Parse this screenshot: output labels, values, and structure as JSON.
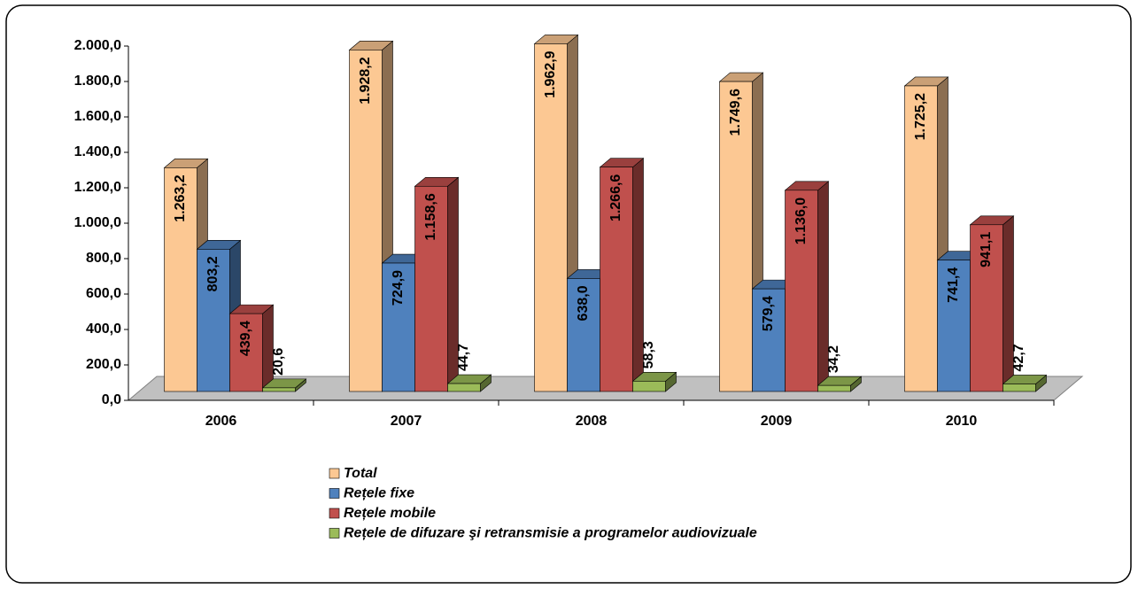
{
  "chart_data": {
    "type": "bar3d",
    "categories": [
      "2006",
      "2007",
      "2008",
      "2009",
      "2010"
    ],
    "series": [
      {
        "name": "Total",
        "color": "#fcc893",
        "values": [
          1263.2,
          1928.2,
          1962.9,
          1749.6,
          1725.2
        ],
        "value_labels": [
          "1.263,2",
          "1.928,2",
          "1.962,9",
          "1.749,6",
          "1.725,2"
        ]
      },
      {
        "name": "Rețele fixe",
        "color": "#4f81bd",
        "values": [
          803.2,
          724.9,
          638.0,
          579.4,
          741.4
        ],
        "value_labels": [
          "803,2",
          "724,9",
          "638,0",
          "579,4",
          "741,4"
        ]
      },
      {
        "name": "Rețele mobile",
        "color": "#c0504d",
        "values": [
          439.4,
          1158.6,
          1266.6,
          1136.0,
          941.1
        ],
        "value_labels": [
          "439,4",
          "1.158,6",
          "1.266,6",
          "1.136,0",
          "941,1"
        ]
      },
      {
        "name": "Rețele de difuzare şi retransmisie a programelor audiovizuale",
        "color": "#9bbb59",
        "values": [
          20.6,
          44.7,
          58.3,
          34.2,
          42.7
        ],
        "value_labels": [
          "20,6",
          "44,7",
          "58,3",
          "34,2",
          "42,7"
        ]
      }
    ],
    "ylim": [
      0,
      2000
    ],
    "yticks": [
      {
        "value": 0,
        "label": "0,0"
      },
      {
        "value": 200,
        "label": "200,0"
      },
      {
        "value": 400,
        "label": "400,0"
      },
      {
        "value": 600,
        "label": "600,0"
      },
      {
        "value": 800,
        "label": "800,0"
      },
      {
        "value": 1000,
        "label": "1.000,0"
      },
      {
        "value": 1200,
        "label": "1.200,0"
      },
      {
        "value": 1400,
        "label": "1.400,0"
      },
      {
        "value": 1600,
        "label": "1.600,0"
      },
      {
        "value": 1800,
        "label": "1.800,0"
      },
      {
        "value": 2000,
        "label": "2.000,0"
      }
    ],
    "grid": false
  }
}
